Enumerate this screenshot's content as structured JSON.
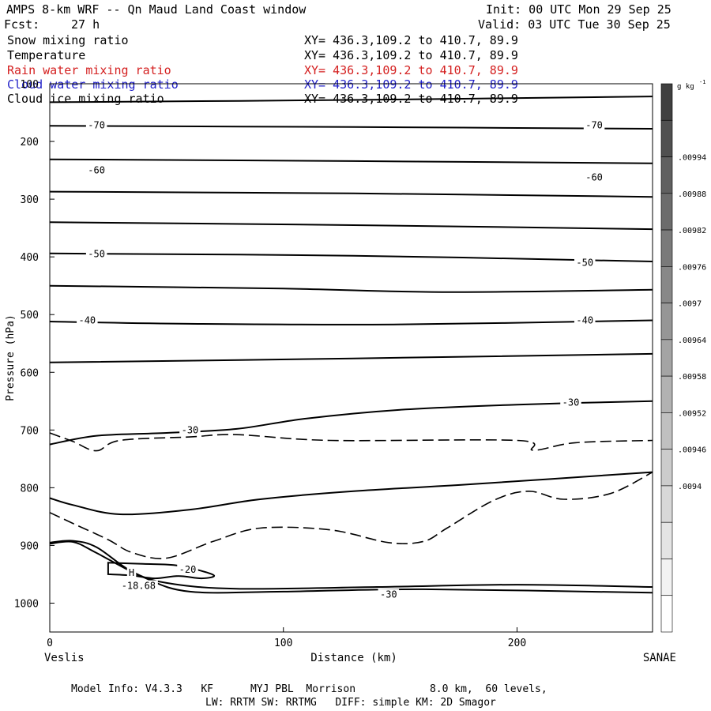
{
  "header": {
    "title": "AMPS 8-km WRF -- Qn Maud Land Coast window",
    "init": "Init: 00 UTC Mon 29 Sep 25",
    "fcst_label": "Fcst:",
    "fcst_value": "27 h",
    "valid": "Valid: 03 UTC Tue 30 Sep 25"
  },
  "fields": [
    {
      "name": "Snow mixing ratio",
      "xy": "XY= 436.3,109.2 to 410.7, 89.9",
      "color": "#000000"
    },
    {
      "name": "Temperature",
      "xy": "XY= 436.3,109.2 to 410.7, 89.9",
      "color": "#000000"
    },
    {
      "name": "Rain water mixing ratio",
      "xy": "XY= 436.3,109.2 to 410.7, 89.9",
      "color": "#d42020"
    },
    {
      "name": "Cloud water mixing ratio",
      "xy": "XY= 436.3,109.2 to 410.7, 89.9",
      "color": "#2020c8"
    },
    {
      "name": "Cloud ice mixing ratio",
      "xy": "XY= 436.3,109.2 to 410.7, 89.9",
      "color": "#000000"
    }
  ],
  "footer": {
    "line1": "Model Info: V4.3.3   KF      MYJ PBL  Morrison            8.0 km,  60 levels,",
    "line2": "LW: RRTM SW: RRTMG   DIFF: simple KM: 2D Smagor"
  },
  "chart_data": {
    "type": "contour cross-section",
    "xlabel": "Distance (km)",
    "ylabel": "Pressure (hPa)",
    "xlim": [
      0,
      258
    ],
    "ylim": [
      1050,
      100
    ],
    "x_ticks": [
      0,
      100,
      200
    ],
    "y_ticks": [
      100,
      200,
      300,
      400,
      500,
      600,
      700,
      800,
      900,
      1000
    ],
    "x_end_labels": {
      "left": "Veslis",
      "right": "SANAE"
    },
    "colorbar": {
      "unit": "g kg",
      "unit_exponent": "-1",
      "tick_labels": [
        ".00994",
        ".00988",
        ".00982",
        ".00976",
        ".0097",
        ".00964",
        ".00958",
        ".00952",
        ".00946",
        ".0094"
      ],
      "colors_top_to_bottom": [
        "#404040",
        "#505050",
        "#606060",
        "#6c6c6c",
        "#7a7a7a",
        "#888888",
        "#969696",
        "#a4a4a4",
        "#b2b2b2",
        "#c0c0c0",
        "#cccccc",
        "#d8d8d8",
        "#e4e4e4",
        "#f2f2f2",
        "#ffffff"
      ]
    },
    "contour_labels": [
      {
        "text": "-70",
        "x": 20,
        "p": 172
      },
      {
        "text": "-70",
        "x": 233,
        "p": 172
      },
      {
        "text": "-60",
        "x": 20,
        "p": 250
      },
      {
        "text": "-60",
        "x": 233,
        "p": 262
      },
      {
        "text": "-50",
        "x": 20,
        "p": 395
      },
      {
        "text": "-50",
        "x": 229,
        "p": 410
      },
      {
        "text": "-40",
        "x": 16,
        "p": 510
      },
      {
        "text": "-40",
        "x": 229,
        "p": 510
      },
      {
        "text": "-30",
        "x": 60,
        "p": 700
      },
      {
        "text": "-30",
        "x": 223,
        "p": 652
      },
      {
        "text": "-20",
        "x": 59,
        "p": 942
      },
      {
        "text": "-30",
        "x": 145,
        "p": 985
      },
      {
        "text": "H",
        "x": 35,
        "p": 947
      },
      {
        "text": "-18.68",
        "x": 38,
        "p": 970
      }
    ],
    "isotherms": [
      [
        [
          0,
          132
        ],
        [
          130,
          128
        ],
        [
          258,
          122
        ]
      ],
      [
        [
          0,
          173
        ],
        [
          130,
          175
        ],
        [
          258,
          178
        ]
      ],
      [
        [
          0,
          231
        ],
        [
          130,
          234
        ],
        [
          258,
          238
        ]
      ],
      [
        [
          0,
          287
        ],
        [
          130,
          290
        ],
        [
          258,
          296
        ]
      ],
      [
        [
          0,
          340
        ],
        [
          130,
          345
        ],
        [
          258,
          352
        ]
      ],
      [
        [
          0,
          394
        ],
        [
          130,
          398
        ],
        [
          258,
          408
        ]
      ],
      [
        [
          0,
          450
        ],
        [
          100,
          455
        ],
        [
          170,
          461
        ],
        [
          258,
          457
        ]
      ],
      [
        [
          0,
          512
        ],
        [
          60,
          516
        ],
        [
          150,
          517
        ],
        [
          258,
          510
        ]
      ],
      [
        [
          0,
          583
        ],
        [
          130,
          576
        ],
        [
          258,
          568
        ]
      ],
      [
        [
          0,
          725
        ],
        [
          20,
          710
        ],
        [
          50,
          705
        ],
        [
          80,
          698
        ],
        [
          110,
          680
        ],
        [
          150,
          665
        ],
        [
          200,
          656
        ],
        [
          258,
          650
        ]
      ],
      [
        [
          0,
          818
        ],
        [
          10,
          830
        ],
        [
          30,
          846
        ],
        [
          60,
          838
        ],
        [
          90,
          820
        ],
        [
          130,
          806
        ],
        [
          180,
          794
        ],
        [
          258,
          773
        ]
      ],
      [
        [
          0,
          895
        ],
        [
          10,
          892
        ],
        [
          20,
          903
        ],
        [
          35,
          945
        ],
        [
          50,
          965
        ],
        [
          80,
          975
        ],
        [
          140,
          972
        ],
        [
          200,
          968
        ],
        [
          258,
          972
        ]
      ],
      [
        [
          0,
          897
        ],
        [
          10,
          894
        ],
        [
          20,
          913
        ],
        [
          40,
          955
        ],
        [
          60,
          980
        ],
        [
          100,
          980
        ],
        [
          160,
          976
        ],
        [
          258,
          982
        ]
      ],
      [
        [
          25,
          950
        ],
        [
          35,
          952
        ],
        [
          45,
          957
        ],
        [
          55,
          953
        ],
        [
          65,
          957
        ],
        [
          70,
          951
        ],
        [
          55,
          935
        ],
        [
          40,
          932
        ],
        [
          25,
          930
        ]
      ]
    ],
    "dashed_contours": [
      [
        [
          0,
          705
        ],
        [
          10,
          720
        ],
        [
          20,
          736
        ],
        [
          30,
          718
        ],
        [
          60,
          712
        ],
        [
          80,
          708
        ],
        [
          120,
          718
        ],
        [
          200,
          718
        ],
        [
          207,
          735
        ],
        [
          225,
          722
        ],
        [
          258,
          718
        ]
      ],
      [
        [
          0,
          843
        ],
        [
          10,
          862
        ],
        [
          25,
          890
        ],
        [
          35,
          912
        ],
        [
          50,
          922
        ],
        [
          70,
          893
        ],
        [
          90,
          870
        ],
        [
          120,
          873
        ],
        [
          145,
          895
        ],
        [
          160,
          893
        ],
        [
          170,
          870
        ],
        [
          190,
          822
        ],
        [
          205,
          806
        ],
        [
          220,
          820
        ],
        [
          240,
          810
        ],
        [
          258,
          773
        ]
      ]
    ]
  }
}
